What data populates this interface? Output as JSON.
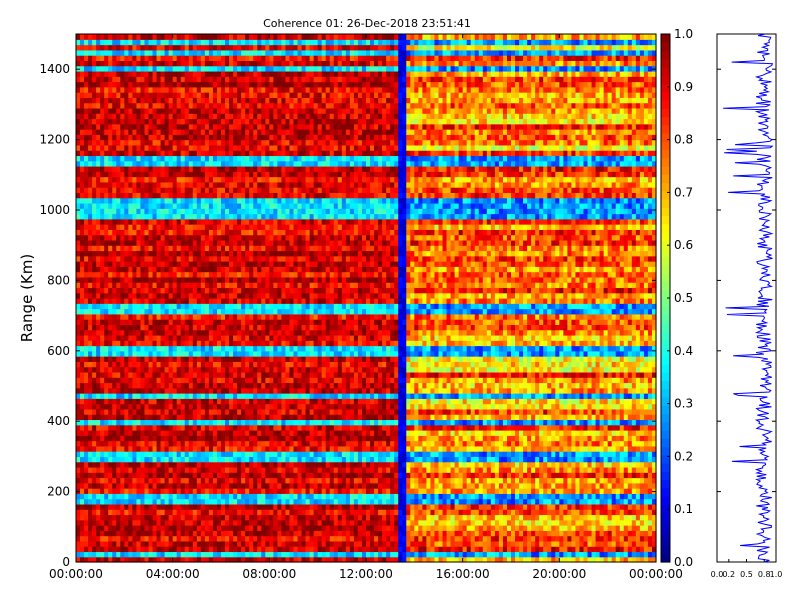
{
  "chart_data": [
    {
      "type": "heatmap",
      "title": "Coherence 01: 26-Dec-2018 23:51:41",
      "xlabel": "",
      "ylabel": "Range (Km)",
      "x_ticks": [
        "00:00:00",
        "04:00:00",
        "08:00:00",
        "12:00:00",
        "16:00:00",
        "20:00:00",
        "00:00:00"
      ],
      "y_ticks": [
        0,
        200,
        400,
        600,
        800,
        1000,
        1200,
        1400
      ],
      "xlim_hours": [
        0,
        24
      ],
      "ylim": [
        0,
        1500
      ],
      "colorbar": {
        "min": 0.0,
        "max": 1.0,
        "colormap": "jet",
        "ticks": [
          "0.0",
          "0.1",
          "0.2",
          "0.3",
          "0.4",
          "0.5",
          "0.6",
          "0.7",
          "0.8",
          "0.9",
          "1.0"
        ]
      },
      "regions": [
        {
          "hours": [
            0,
            13.4
          ],
          "typical_coherence": 0.93,
          "description_level": "high"
        },
        {
          "hours": [
            13.4,
            13.6
          ],
          "typical_coherence": 0.05,
          "description_level": "very low"
        },
        {
          "hours": [
            13.6,
            24
          ],
          "typical_coherence": 0.75,
          "description_level": "moderate"
        }
      ],
      "low_coherence_bands_km": [
        20,
        180,
        300,
        395,
        470,
        600,
        715,
        725,
        990,
        1020,
        1140,
        1400,
        1450,
        1480
      ]
    },
    {
      "type": "line",
      "xlabel": "",
      "ylabel": "",
      "x_ticks": [
        "0.0",
        "0.2",
        "0.5",
        "0.8",
        "1.0"
      ],
      "xlim": [
        0,
        1
      ],
      "ylim": [
        0,
        1500
      ],
      "series": [
        {
          "mean_coherence": 0.8,
          "range_min": 0.1,
          "range_max": 1.0
        }
      ]
    }
  ],
  "colors": {
    "line": "#0000ff",
    "frame": "#000000"
  }
}
